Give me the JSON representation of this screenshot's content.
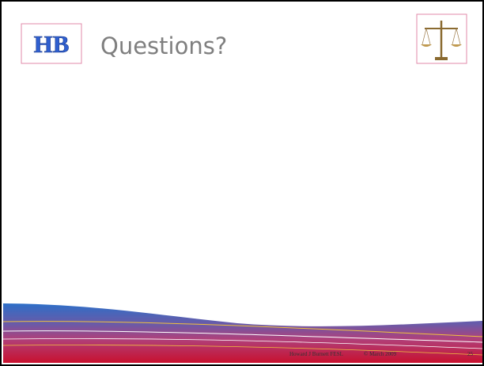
{
  "slide": {
    "logo": "HB",
    "title": "Questions?",
    "footer": {
      "author": "Howard J Burnett FESL",
      "date": "© March 2009",
      "page": "25"
    }
  }
}
